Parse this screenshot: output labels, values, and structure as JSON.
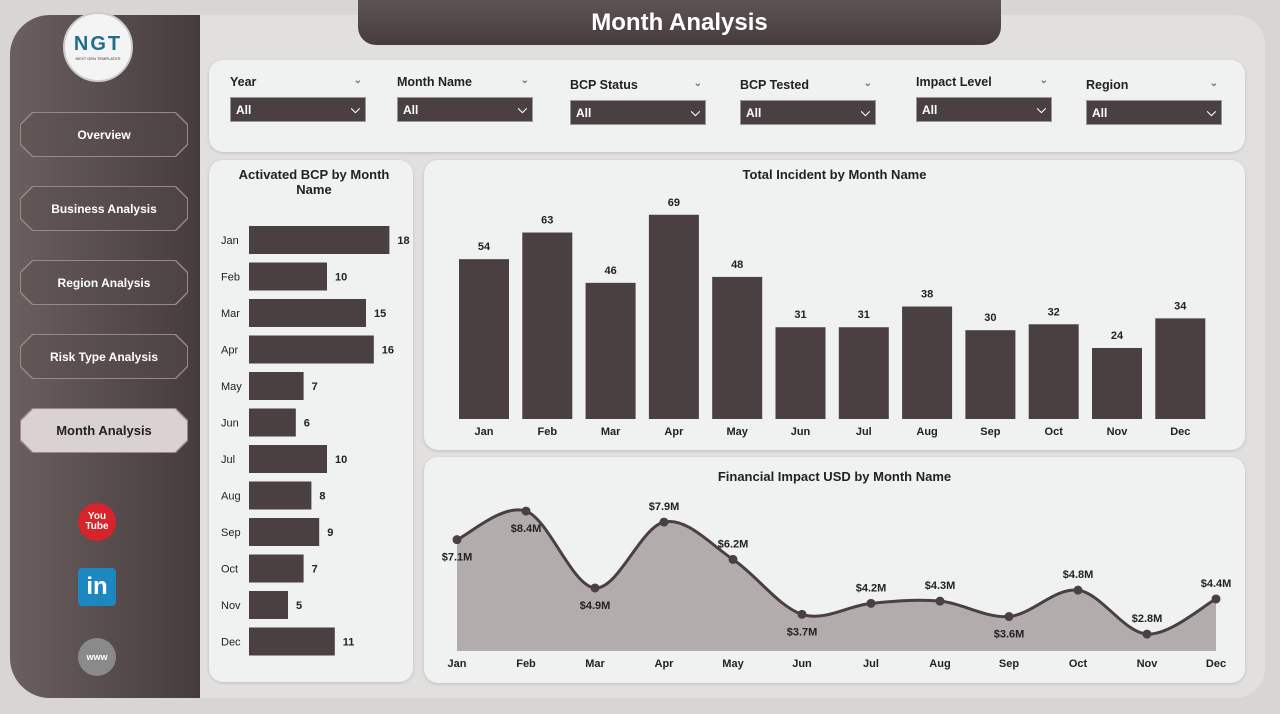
{
  "header": {
    "title": "Month Analysis"
  },
  "logo": {
    "text": "NGT",
    "subtext": "NEXT GEN TEMPLATES"
  },
  "sidebar": {
    "items": [
      {
        "label": "Overview"
      },
      {
        "label": "Business Analysis"
      },
      {
        "label": "Region Analysis"
      },
      {
        "label": "Risk Type Analysis"
      },
      {
        "label": "Month Analysis",
        "active": true
      }
    ],
    "social": [
      {
        "icon": "youtube-icon",
        "label": "You Tube",
        "color": "#d8232a"
      },
      {
        "icon": "linkedin-icon",
        "label": "in",
        "color": "#1d87c0"
      },
      {
        "icon": "globe-icon",
        "label": "www",
        "color": "#8a8a8a"
      }
    ]
  },
  "filters": [
    {
      "label": "Year",
      "value": "All"
    },
    {
      "label": "Month Name",
      "value": "All"
    },
    {
      "label": "BCP Status",
      "value": "All"
    },
    {
      "label": "BCP Tested",
      "value": "All"
    },
    {
      "label": "Impact Level",
      "value": "All"
    },
    {
      "label": "Region",
      "value": "All"
    }
  ],
  "colors": {
    "bar": "#4a4041",
    "area": "#b3acad",
    "line": "#4a4041"
  },
  "chart_data": [
    {
      "type": "bar",
      "orientation": "horizontal",
      "title": "Activated BCP by Month Name",
      "categories": [
        "Jan",
        "Feb",
        "Mar",
        "Apr",
        "May",
        "Jun",
        "Jul",
        "Aug",
        "Sep",
        "Oct",
        "Nov",
        "Dec"
      ],
      "values": [
        18,
        10,
        15,
        16,
        7,
        6,
        10,
        8,
        9,
        7,
        5,
        11
      ]
    },
    {
      "type": "bar",
      "title": "Total Incident by Month Name",
      "categories": [
        "Jan",
        "Feb",
        "Mar",
        "Apr",
        "May",
        "Jun",
        "Jul",
        "Aug",
        "Sep",
        "Oct",
        "Nov",
        "Dec"
      ],
      "values": [
        54,
        63,
        46,
        69,
        48,
        31,
        31,
        38,
        30,
        32,
        24,
        34
      ]
    },
    {
      "type": "area",
      "title": "Financial Impact USD by Month Name",
      "categories": [
        "Jan",
        "Feb",
        "Mar",
        "Apr",
        "May",
        "Jun",
        "Jul",
        "Aug",
        "Sep",
        "Oct",
        "Nov",
        "Dec"
      ],
      "values": [
        7.1,
        8.4,
        4.9,
        7.9,
        6.2,
        3.7,
        4.2,
        4.3,
        3.6,
        4.8,
        2.8,
        4.4
      ],
      "labels": [
        "$7.1M",
        "$8.4M",
        "$4.9M",
        "$7.9M",
        "$6.2M",
        "$3.7M",
        "$4.2M",
        "$4.3M",
        "$3.6M",
        "$4.8M",
        "$2.8M",
        "$4.4M"
      ],
      "unit": "USD millions"
    }
  ]
}
